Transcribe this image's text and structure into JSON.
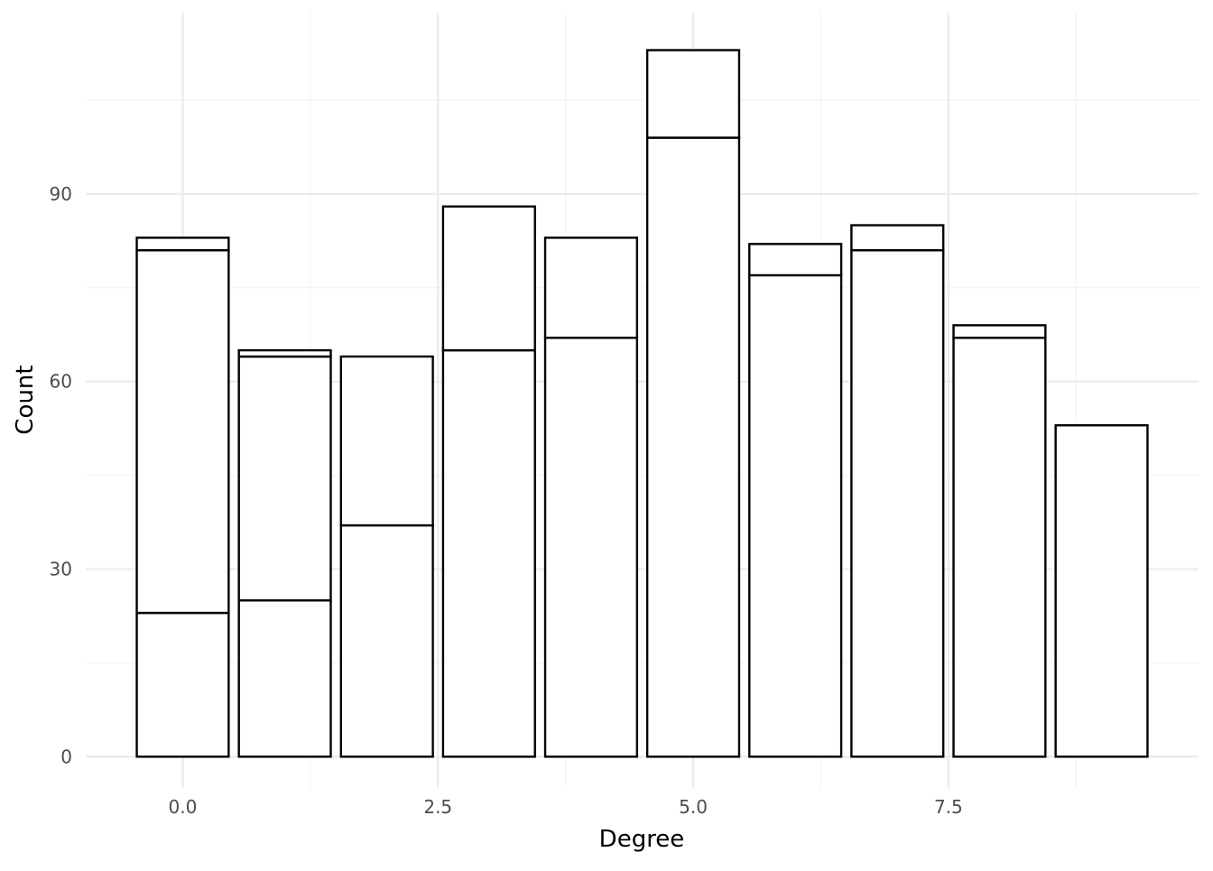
{
  "chart_data": {
    "type": "bar",
    "stacked": true,
    "title": "",
    "xlabel": "Degree",
    "ylabel": "Count",
    "x": [
      0,
      1,
      2,
      3,
      4,
      5,
      6,
      7,
      8,
      9
    ],
    "segments": [
      [
        23,
        58,
        2
      ],
      [
        25,
        39,
        1
      ],
      [
        37,
        27
      ],
      [
        65,
        23
      ],
      [
        67,
        16
      ],
      [
        99,
        14
      ],
      [
        77,
        5
      ],
      [
        81,
        4
      ],
      [
        67,
        2
      ],
      [
        53
      ]
    ],
    "totals": [
      83,
      65,
      64,
      88,
      83,
      113,
      82,
      85,
      69,
      53
    ],
    "xlim": [
      -0.95,
      9.95
    ],
    "ylim": [
      -5,
      119
    ],
    "x_ticks": [
      0.0,
      2.5,
      5.0,
      7.5
    ],
    "x_tick_labels": [
      "0.0",
      "2.5",
      "5.0",
      "7.5"
    ],
    "x_minor_ticks": [
      1.25,
      3.75,
      6.25,
      8.75
    ],
    "y_ticks": [
      0,
      30,
      60,
      90
    ],
    "y_tick_labels": [
      "0",
      "30",
      "60",
      "90"
    ],
    "y_minor_ticks": [
      15,
      45,
      75,
      105
    ],
    "grid": true,
    "bar_fill": "#ffffff",
    "bar_stroke": "#000000",
    "grid_major_color": "#ebebeb",
    "grid_minor_color": "#f2f2f2"
  }
}
